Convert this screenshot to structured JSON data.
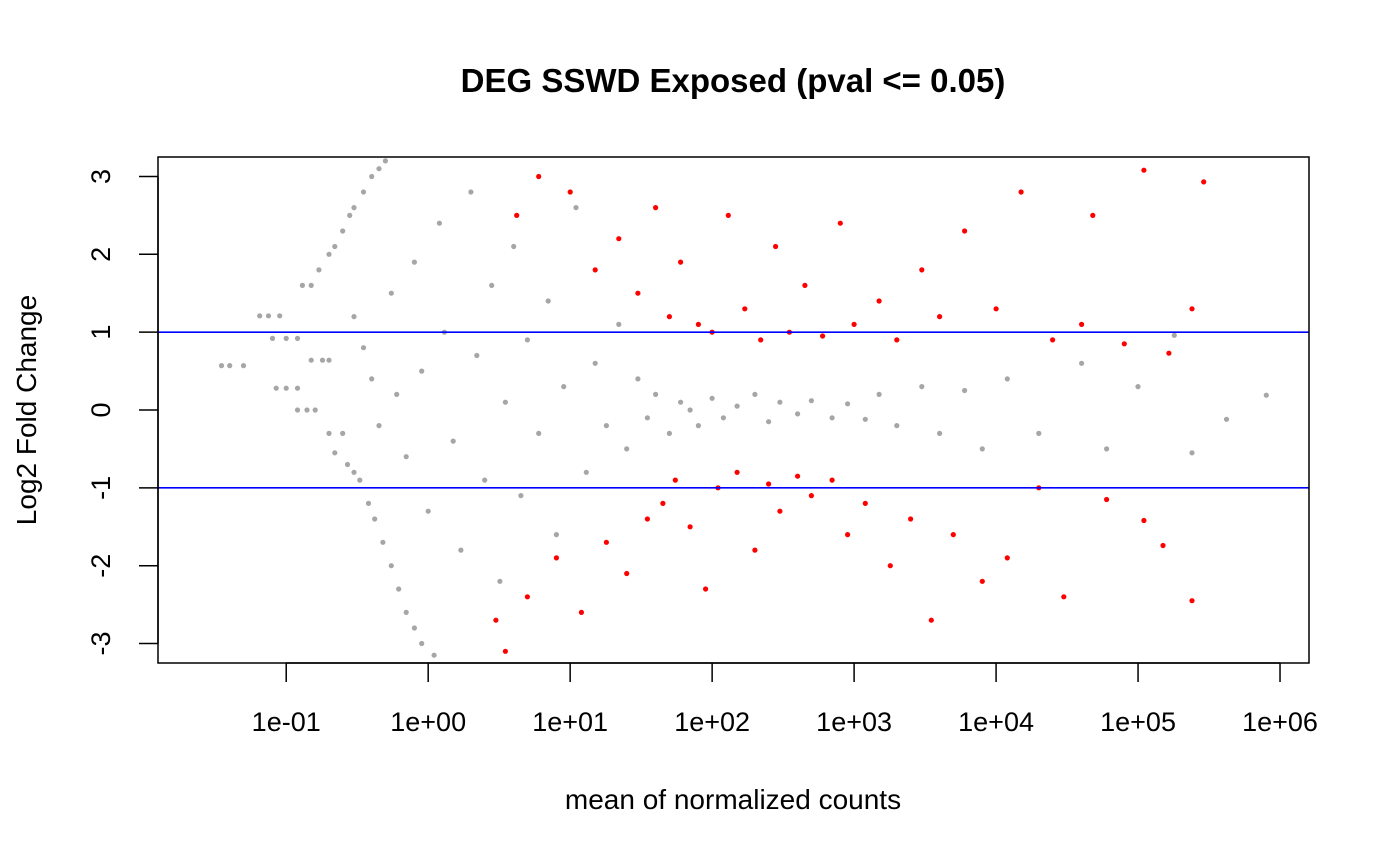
{
  "chart_data": {
    "type": "scatter",
    "title": "DEG SSWD Exposed  (pval <= 0.05)",
    "xlabel": "mean of normalized counts",
    "ylabel": "Log2 Fold Change",
    "x_scale": "log10",
    "xlim": [
      0.0125,
      1600000
    ],
    "ylim": [
      -3.25,
      3.25
    ],
    "x_ticks": [
      0.1,
      1,
      10,
      100,
      1000,
      10000,
      100000,
      1000000
    ],
    "x_tick_labels": [
      "1e-01",
      "1e+00",
      "1e+01",
      "1e+02",
      "1e+03",
      "1e+04",
      "1e+05",
      "1e+06"
    ],
    "y_ticks": [
      -3,
      -2,
      -1,
      0,
      1,
      2,
      3
    ],
    "y_tick_labels": [
      "-3",
      "-2",
      "-1",
      "0",
      "1",
      "2",
      "3"
    ],
    "hlines": [
      1,
      -1
    ],
    "grid": false,
    "legend": "none",
    "colors": {
      "not_significant": "#a6a6a6",
      "significant": "#ff0000",
      "threshold_line": "#0000ff",
      "frame": "#000000"
    },
    "series": [
      {
        "significant": false,
        "points": [
          [
            0.035,
            0.57
          ],
          [
            0.04,
            0.57
          ],
          [
            0.05,
            0.57
          ],
          [
            0.065,
            1.21
          ],
          [
            0.075,
            1.21
          ],
          [
            0.09,
            1.21
          ],
          [
            0.08,
            0.92
          ],
          [
            0.1,
            0.92
          ],
          [
            0.12,
            0.92
          ],
          [
            0.085,
            0.28
          ],
          [
            0.1,
            0.28
          ],
          [
            0.12,
            0.28
          ],
          [
            0.13,
            1.6
          ],
          [
            0.15,
            1.6
          ],
          [
            0.17,
            1.8
          ],
          [
            0.2,
            2.0
          ],
          [
            0.22,
            2.1
          ],
          [
            0.25,
            2.3
          ],
          [
            0.28,
            2.5
          ],
          [
            0.3,
            2.6
          ],
          [
            0.35,
            2.8
          ],
          [
            0.4,
            3.0
          ],
          [
            0.45,
            3.1
          ],
          [
            0.5,
            3.2
          ],
          [
            0.15,
            0.64
          ],
          [
            0.18,
            0.64
          ],
          [
            0.2,
            0.64
          ],
          [
            0.12,
            0.0
          ],
          [
            0.14,
            0.0
          ],
          [
            0.16,
            0.0
          ],
          [
            0.2,
            -0.3
          ],
          [
            0.25,
            -0.3
          ],
          [
            0.22,
            -0.55
          ],
          [
            0.27,
            -0.7
          ],
          [
            0.3,
            -0.8
          ],
          [
            0.33,
            -0.9
          ],
          [
            0.38,
            -1.2
          ],
          [
            0.42,
            -1.4
          ],
          [
            0.48,
            -1.7
          ],
          [
            0.55,
            -2.0
          ],
          [
            0.62,
            -2.3
          ],
          [
            0.7,
            -2.6
          ],
          [
            0.8,
            -2.8
          ],
          [
            0.9,
            -3.0
          ],
          [
            1.1,
            -3.15
          ],
          [
            0.3,
            1.2
          ],
          [
            0.35,
            0.8
          ],
          [
            0.4,
            0.4
          ],
          [
            0.45,
            -0.2
          ],
          [
            0.55,
            1.5
          ],
          [
            0.6,
            0.2
          ],
          [
            0.7,
            -0.6
          ],
          [
            0.8,
            1.9
          ],
          [
            0.9,
            0.5
          ],
          [
            1.0,
            -1.3
          ],
          [
            1.2,
            2.4
          ],
          [
            1.3,
            1.0
          ],
          [
            1.5,
            -0.4
          ],
          [
            1.7,
            -1.8
          ],
          [
            2.0,
            2.8
          ],
          [
            2.2,
            0.7
          ],
          [
            2.5,
            -0.9
          ],
          [
            2.8,
            1.6
          ],
          [
            3.2,
            -2.2
          ],
          [
            3.5,
            0.1
          ],
          [
            4.0,
            2.1
          ],
          [
            4.5,
            -1.1
          ],
          [
            5.0,
            0.9
          ],
          [
            6.0,
            -0.3
          ],
          [
            7.0,
            1.4
          ],
          [
            8.0,
            -1.6
          ],
          [
            9.0,
            0.3
          ],
          [
            11,
            2.6
          ],
          [
            13,
            -0.8
          ],
          [
            15,
            0.6
          ],
          [
            18,
            -0.2
          ],
          [
            22,
            1.1
          ],
          [
            25,
            -0.5
          ],
          [
            30,
            0.4
          ],
          [
            35,
            -0.1
          ],
          [
            40,
            0.2
          ],
          [
            50,
            -0.3
          ],
          [
            60,
            0.1
          ],
          [
            70,
            0.0
          ],
          [
            80,
            -0.2
          ],
          [
            100,
            0.15
          ],
          [
            120,
            -0.1
          ],
          [
            150,
            0.05
          ],
          [
            200,
            0.2
          ],
          [
            250,
            -0.15
          ],
          [
            300,
            0.1
          ],
          [
            400,
            -0.05
          ],
          [
            500,
            0.12
          ],
          [
            700,
            -0.1
          ],
          [
            900,
            0.08
          ],
          [
            1200,
            -0.12
          ],
          [
            1500,
            0.2
          ],
          [
            2000,
            -0.2
          ],
          [
            3000,
            0.3
          ],
          [
            4000,
            -0.3
          ],
          [
            6000,
            0.25
          ],
          [
            8000,
            -0.5
          ],
          [
            12000,
            0.4
          ],
          [
            20000,
            -0.3
          ],
          [
            40000,
            0.6
          ],
          [
            60000,
            -0.5
          ],
          [
            100000,
            0.3
          ],
          [
            180000,
            0.96
          ],
          [
            240000,
            -0.55
          ],
          [
            420000,
            -0.12
          ],
          [
            800000,
            0.19
          ]
        ]
      },
      {
        "significant": true,
        "points": [
          [
            3.0,
            -2.7
          ],
          [
            3.5,
            -3.1
          ],
          [
            4.2,
            2.5
          ],
          [
            5.0,
            -2.4
          ],
          [
            6.0,
            3.0
          ],
          [
            8.0,
            -1.9
          ],
          [
            10,
            2.8
          ],
          [
            12,
            -2.6
          ],
          [
            15,
            1.8
          ],
          [
            18,
            -1.7
          ],
          [
            22,
            2.2
          ],
          [
            25,
            -2.1
          ],
          [
            30,
            1.5
          ],
          [
            35,
            -1.4
          ],
          [
            40,
            2.6
          ],
          [
            45,
            -1.2
          ],
          [
            50,
            1.2
          ],
          [
            55,
            -0.9
          ],
          [
            60,
            1.9
          ],
          [
            70,
            -1.5
          ],
          [
            80,
            1.1
          ],
          [
            90,
            -2.3
          ],
          [
            100,
            1.0
          ],
          [
            110,
            -1.0
          ],
          [
            130,
            2.5
          ],
          [
            150,
            -0.8
          ],
          [
            170,
            1.3
          ],
          [
            200,
            -1.8
          ],
          [
            220,
            0.9
          ],
          [
            250,
            -0.95
          ],
          [
            280,
            2.1
          ],
          [
            300,
            -1.3
          ],
          [
            350,
            1.0
          ],
          [
            400,
            -0.85
          ],
          [
            450,
            1.6
          ],
          [
            500,
            -1.1
          ],
          [
            600,
            0.95
          ],
          [
            700,
            -0.9
          ],
          [
            800,
            2.4
          ],
          [
            900,
            -1.6
          ],
          [
            1000,
            1.1
          ],
          [
            1200,
            -1.2
          ],
          [
            1500,
            1.4
          ],
          [
            1800,
            -2.0
          ],
          [
            2000,
            0.9
          ],
          [
            2500,
            -1.4
          ],
          [
            3000,
            1.8
          ],
          [
            3500,
            -2.7
          ],
          [
            4000,
            1.2
          ],
          [
            5000,
            -1.6
          ],
          [
            6000,
            2.3
          ],
          [
            8000,
            -2.2
          ],
          [
            10000,
            1.3
          ],
          [
            12000,
            -1.9
          ],
          [
            15000,
            2.8
          ],
          [
            20000,
            -1.0
          ],
          [
            25000,
            0.9
          ],
          [
            30000,
            -2.4
          ],
          [
            40000,
            1.1
          ],
          [
            48000,
            2.5
          ],
          [
            60000,
            -1.15
          ],
          [
            80000,
            0.85
          ],
          [
            110000,
            3.08
          ],
          [
            110000,
            -1.42
          ],
          [
            150000,
            -1.74
          ],
          [
            165000,
            0.73
          ],
          [
            240000,
            1.3
          ],
          [
            240000,
            -2.45
          ],
          [
            290000,
            2.93
          ]
        ]
      }
    ]
  }
}
